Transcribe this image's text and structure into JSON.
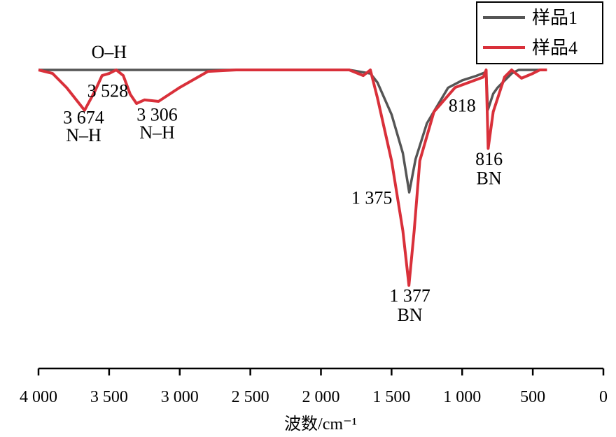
{
  "chart_data": {
    "type": "line",
    "title": "",
    "xlabel": "波数/cm⁻¹",
    "ylabel": "",
    "xlim": [
      4000,
      0
    ],
    "ylim": [
      0,
      100
    ],
    "y_units": "arbitrary transmittance (no y ticks shown)",
    "grid": false,
    "legend_position": "top-right",
    "x_ticks": [
      4000,
      3500,
      3000,
      2500,
      2000,
      1500,
      1000,
      500,
      0
    ],
    "x_tick_labels": [
      "4 000",
      "3 500",
      "3 000",
      "2 500",
      "2 000",
      "1 500",
      "1 000",
      "500",
      "0"
    ],
    "series": [
      {
        "name": "样品1",
        "color": "#555555",
        "x": [
          4000,
          3000,
          2000,
          1800,
          1650,
          1600,
          1500,
          1420,
          1375,
          1330,
          1250,
          1200,
          1100,
          1000,
          900,
          830,
          818,
          780,
          750,
          650,
          600,
          400
        ],
        "y": [
          100,
          100,
          100,
          100,
          98.8,
          95.8,
          85,
          72,
          58.8,
          70,
          82,
          86,
          94,
          96.5,
          98,
          99.3,
          86.6,
          92,
          94,
          98.8,
          100,
          100
        ]
      },
      {
        "name": "样品4",
        "color": "#d9303a",
        "x": [
          4000,
          3900,
          3800,
          3674,
          3600,
          3550,
          3500,
          3450,
          3400,
          3350,
          3306,
          3250,
          3150,
          3000,
          2800,
          2600,
          1800,
          1700,
          1650,
          1600,
          1500,
          1420,
          1377,
          1340,
          1300,
          1200,
          1050,
          850,
          830,
          816,
          780,
          700,
          650,
          580,
          500,
          450,
          400
        ],
        "y": [
          100,
          98.8,
          94,
          86.4,
          92.9,
          98.1,
          98.8,
          100,
          98.1,
          91.8,
          88.7,
          89.9,
          89.4,
          94.1,
          99.5,
          100,
          100,
          98.1,
          100,
          90.6,
          69.4,
          45.9,
          27.5,
          45.9,
          69.4,
          85.9,
          94.1,
          97.6,
          100,
          73.6,
          85.9,
          97.6,
          100,
          97.2,
          98.8,
          100,
          100
        ]
      }
    ],
    "annotations": [
      {
        "text": "O–H",
        "x": 3500,
        "y": 104
      },
      {
        "text": "3 528",
        "x": 3510,
        "y": 91
      },
      {
        "text": "3 674",
        "x": 3680,
        "y": 82
      },
      {
        "text": "N–H",
        "x": 3680,
        "y": 76
      },
      {
        "text": "3 306",
        "x": 3160,
        "y": 83
      },
      {
        "text": "N–H",
        "x": 3160,
        "y": 77
      },
      {
        "text": "1 375",
        "x": 1640,
        "y": 55
      },
      {
        "text": "1 377",
        "x": 1370,
        "y": 22
      },
      {
        "text": "BN",
        "x": 1370,
        "y": 15.5
      },
      {
        "text": "818",
        "x": 1000,
        "y": 86
      },
      {
        "text": "816",
        "x": 810,
        "y": 68
      },
      {
        "text": "BN",
        "x": 810,
        "y": 61.5
      }
    ]
  }
}
